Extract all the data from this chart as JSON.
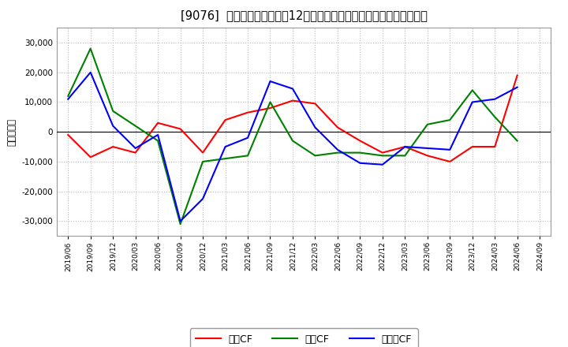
{
  "title": "[9076]  キャッシュフローの12か月移動合計の対前年同期増減額の推移",
  "ylabel": "（百万円）",
  "background_color": "#ffffff",
  "plot_bg_color": "#ffffff",
  "grid_color": "#bbbbbb",
  "ylim": [
    -35000,
    35000
  ],
  "yticks": [
    -30000,
    -20000,
    -10000,
    0,
    10000,
    20000,
    30000
  ],
  "x_labels": [
    "2019/06",
    "2019/09",
    "2019/12",
    "2020/03",
    "2020/06",
    "2020/09",
    "2020/12",
    "2021/03",
    "2021/06",
    "2021/09",
    "2021/12",
    "2022/03",
    "2022/06",
    "2022/09",
    "2022/12",
    "2023/03",
    "2023/06",
    "2023/09",
    "2023/12",
    "2024/03",
    "2024/06",
    "2024/09"
  ],
  "eigyo_cf": [
    -1000,
    -8500,
    -5000,
    -7000,
    3000,
    1000,
    -7000,
    4000,
    6500,
    8000,
    10500,
    9500,
    1500,
    -3000,
    -7000,
    -5000,
    -8000,
    -10000,
    -5000,
    -5000,
    19000,
    null
  ],
  "toshi_cf": [
    12000,
    28000,
    7000,
    2000,
    -3000,
    -31000,
    -10000,
    -9000,
    -8000,
    10000,
    -3000,
    -8000,
    -7000,
    -7000,
    -8000,
    -8000,
    2500,
    4000,
    14000,
    5000,
    -3000,
    null
  ],
  "free_cf": [
    11000,
    20000,
    2000,
    -5500,
    -1000,
    -30000,
    -22500,
    -5000,
    -2000,
    17000,
    14500,
    1500,
    -6000,
    -10500,
    -11000,
    -5000,
    -5500,
    -6000,
    10000,
    11000,
    15000,
    null
  ],
  "series_colors": {
    "eigyo": "#ff0000",
    "toshi": "#008000",
    "free": "#0000ff"
  },
  "legend_labels": {
    "eigyo": "営業CF",
    "toshi": "投資CF",
    "free": "フリーCF"
  }
}
